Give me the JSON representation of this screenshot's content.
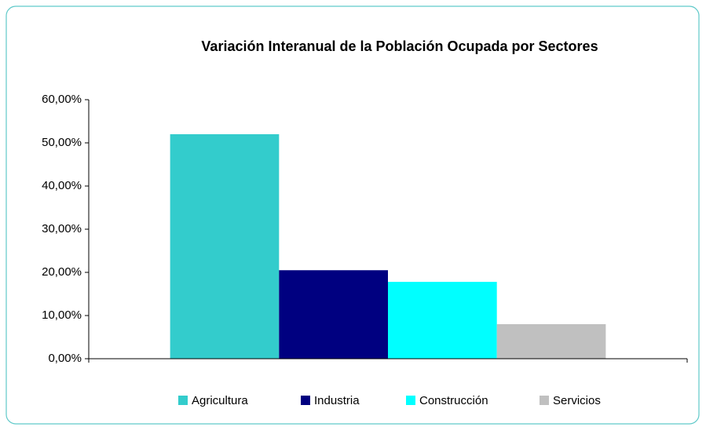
{
  "chart_data": {
    "type": "bar",
    "title": "Variación Interanual de la Población Ocupada por Sectores",
    "categories": [
      null
    ],
    "series": [
      {
        "name": "Agricultura",
        "color": "#33cccc",
        "values": [
          52.0
        ]
      },
      {
        "name": "Industria",
        "color": "#000080",
        "values": [
          20.5
        ]
      },
      {
        "name": "Construcción",
        "color": "#00ffff",
        "values": [
          17.8
        ]
      },
      {
        "name": "Servicios",
        "color": "#c0c0c0",
        "values": [
          8.0
        ]
      }
    ],
    "ylim": [
      0,
      60
    ],
    "yticks": [
      {
        "value": 0,
        "label": "0,00%"
      },
      {
        "value": 10,
        "label": "10,00%"
      },
      {
        "value": 20,
        "label": "20,00%"
      },
      {
        "value": 30,
        "label": "30,00%"
      },
      {
        "value": 40,
        "label": "40,00%"
      },
      {
        "value": 50,
        "label": "50,00%"
      },
      {
        "value": 60,
        "label": "60,00%"
      }
    ],
    "grid": false,
    "legend": "bottom"
  }
}
